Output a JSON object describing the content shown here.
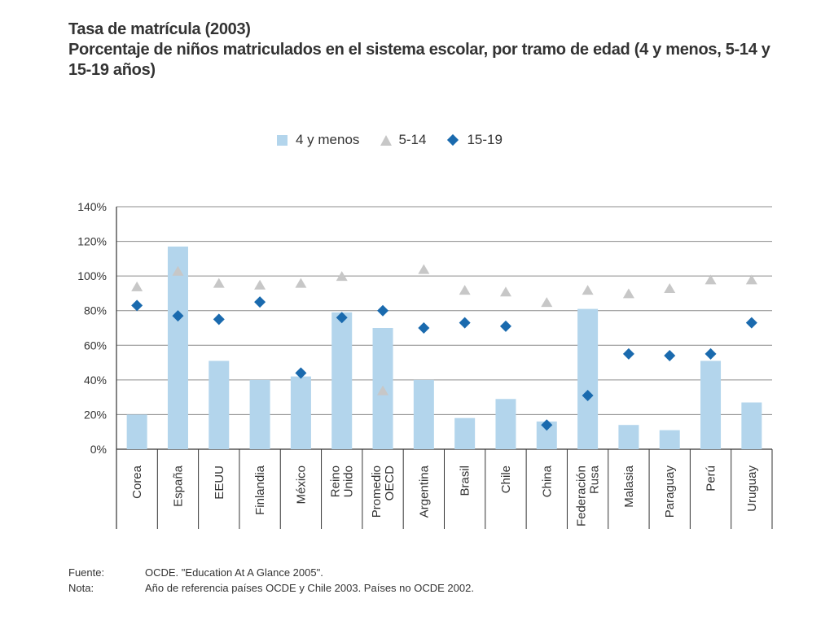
{
  "title": "Tasa de matrícula (2003)",
  "subtitle": [
    "Porcentaje de niños matriculados en el sistema escolar, por tramo de edad (4 y menos, 5-14 y",
    "15-19 años)"
  ],
  "legend": [
    {
      "label": "4 y menos",
      "marker": "bar"
    },
    {
      "label": "5-14",
      "marker": "triangle"
    },
    {
      "label": "15-19",
      "marker": "diamond"
    }
  ],
  "colors": {
    "bar": "#b3d5ec",
    "triangle": "#c7c7c7",
    "diamond": "#1a6aae",
    "grid": "#8c8c8c",
    "axis": "#333333"
  },
  "footer": {
    "source_label": "Fuente:",
    "source_text": "OCDE. \"Education At A Glance 2005\".",
    "note_label": "Nota:",
    "note_text": "Año de referencia países OCDE y Chile 2003. Países no OCDE 2002."
  },
  "chart_data": {
    "type": "bar",
    "categories": [
      [
        "Corea"
      ],
      [
        "España"
      ],
      [
        "EEUU"
      ],
      [
        "Finlandia"
      ],
      [
        "México"
      ],
      [
        "Reino",
        "Unido"
      ],
      [
        "Promedio",
        "OECD"
      ],
      [
        "Argentina"
      ],
      [
        "Brasil"
      ],
      [
        "Chile"
      ],
      [
        "China"
      ],
      [
        "Federación",
        "Rusa"
      ],
      [
        "Malasia"
      ],
      [
        "Paraguay"
      ],
      [
        "Perú"
      ],
      [
        "Uruguay"
      ]
    ],
    "yticks": [
      "0%",
      "20%",
      "40%",
      "60%",
      "80%",
      "100%",
      "120%",
      "140%"
    ],
    "ylim": [
      0,
      140
    ],
    "grid": true,
    "legend_position": "top",
    "series": [
      {
        "name": "4 y menos",
        "type": "bar",
        "values": [
          20,
          117,
          51,
          40,
          42,
          79,
          70,
          40,
          18,
          29,
          16,
          81,
          14,
          11,
          51,
          27
        ]
      },
      {
        "name": "5-14",
        "type": "triangle",
        "values": [
          94,
          103,
          96,
          95,
          96,
          100,
          34,
          104,
          92,
          91,
          85,
          92,
          90,
          93,
          98,
          98
        ]
      },
      {
        "name": "15-19",
        "type": "diamond",
        "values": [
          83,
          77,
          75,
          85,
          44,
          76,
          80,
          70,
          73,
          71,
          14,
          31,
          55,
          54,
          55,
          73
        ]
      }
    ]
  }
}
